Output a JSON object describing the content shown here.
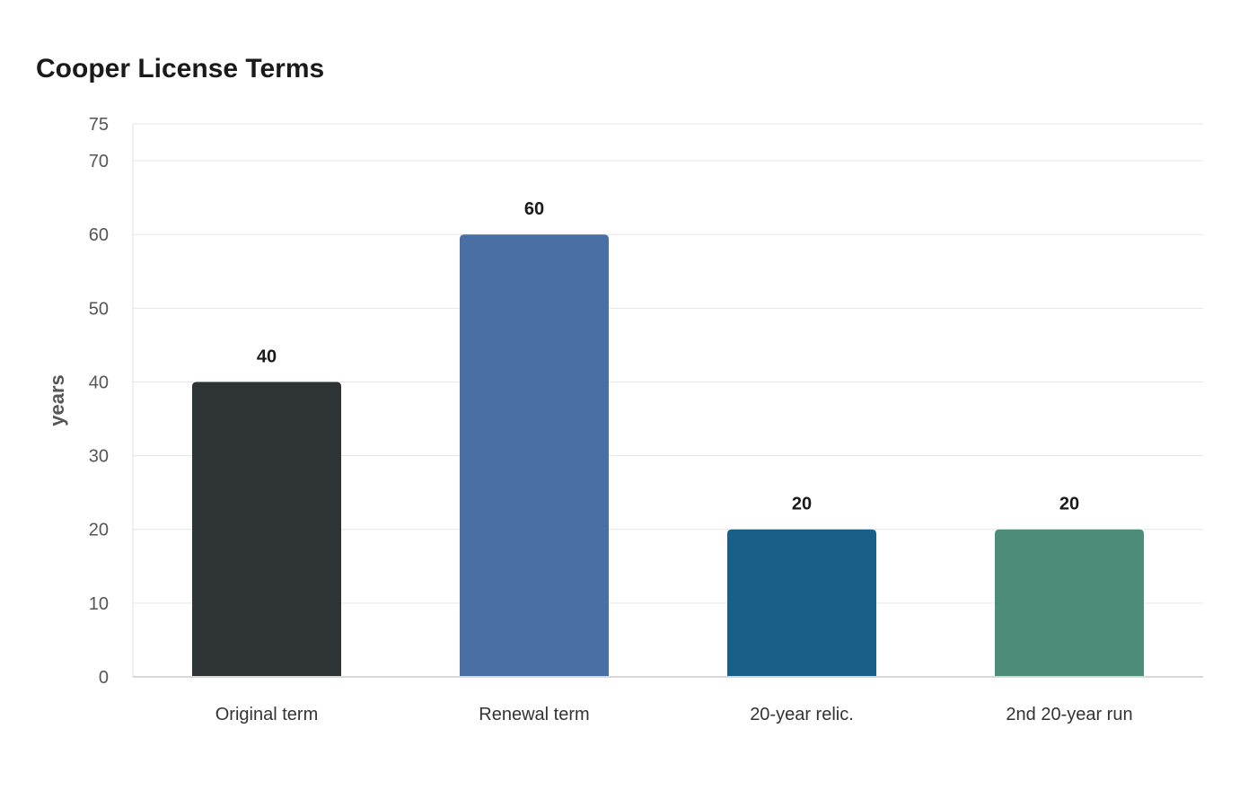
{
  "chart_data": {
    "type": "bar",
    "title": "Cooper License Terms",
    "xlabel": "",
    "ylabel": "years",
    "categories": [
      "Original term",
      "Renewal term",
      "20-year relic.",
      "2nd 20-year run"
    ],
    "values": [
      40,
      60,
      20,
      20
    ],
    "data_labels": [
      "40",
      "60",
      "20",
      "20"
    ],
    "colors": [
      "#2e3436",
      "#4a6fa5",
      "#186088",
      "#4e8c7a"
    ],
    "ylim": [
      0,
      75
    ],
    "yticks": [
      0,
      10,
      20,
      30,
      40,
      50,
      60,
      70,
      75
    ],
    "grid": true,
    "legend": "none"
  }
}
